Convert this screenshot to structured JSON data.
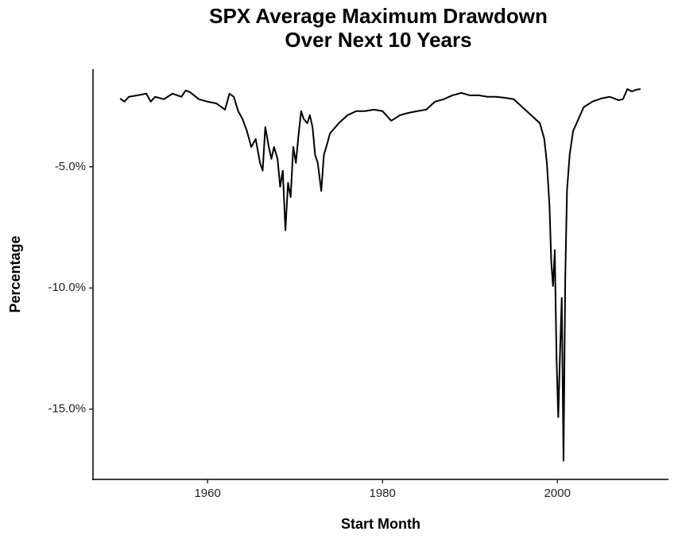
{
  "chart_data": {
    "type": "line",
    "title": [
      "SPX Average Maximum Drawdown",
      "Over Next 10 Years"
    ],
    "x_label": "Start Month",
    "y_label": "Percentage",
    "color": "#000000",
    "x": [
      1950,
      1950.5,
      1951,
      1952,
      1953,
      1953.5,
      1954,
      1955,
      1956,
      1957,
      1957.5,
      1958,
      1959,
      1960,
      1961,
      1962,
      1962.5,
      1963,
      1963.5,
      1964,
      1964.5,
      1965,
      1965.5,
      1966,
      1966.3,
      1966.6,
      1967,
      1967.3,
      1967.6,
      1968,
      1968.3,
      1968.6,
      1968.9,
      1969.2,
      1969.5,
      1969.8,
      1970.1,
      1970.4,
      1970.7,
      1971,
      1971.4,
      1971.7,
      1972,
      1972.3,
      1972.6,
      1973,
      1973.3,
      1973.7,
      1974,
      1975,
      1976,
      1977,
      1978,
      1979,
      1980,
      1981,
      1982,
      1983,
      1984,
      1985,
      1986,
      1987,
      1988,
      1989,
      1990,
      1991,
      1992,
      1993,
      1994,
      1995,
      1996,
      1997,
      1998,
      1998.5,
      1998.8,
      1999.1,
      1999.3,
      1999.5,
      1999.7,
      1999.9,
      2000.1,
      2000.3,
      2000.5,
      2000.7,
      2000.9,
      2001.1,
      2001.4,
      2001.8,
      2002.2,
      2003,
      2004,
      2005,
      2006,
      2007,
      2007.5,
      2008,
      2008.5,
      2009,
      2009.5
    ],
    "values": [
      -2.18,
      -2.31,
      -2.11,
      -2.05,
      -1.98,
      -2.31,
      -2.11,
      -2.21,
      -1.98,
      -2.11,
      -1.85,
      -1.92,
      -2.21,
      -2.31,
      -2.38,
      -2.64,
      -1.98,
      -2.11,
      -2.7,
      -3.03,
      -3.52,
      -4.18,
      -3.85,
      -4.84,
      -5.16,
      -3.36,
      -4.18,
      -4.67,
      -4.18,
      -4.67,
      -5.82,
      -5.16,
      -7.62,
      -5.66,
      -6.25,
      -4.18,
      -4.84,
      -3.69,
      -2.7,
      -3.03,
      -3.2,
      -2.87,
      -3.36,
      -4.51,
      -4.84,
      -6.0,
      -4.51,
      -4.02,
      -3.62,
      -3.2,
      -2.87,
      -2.7,
      -2.7,
      -2.64,
      -2.7,
      -3.1,
      -2.87,
      -2.77,
      -2.7,
      -2.64,
      -2.31,
      -2.21,
      -2.05,
      -1.95,
      -2.05,
      -2.05,
      -2.11,
      -2.11,
      -2.15,
      -2.21,
      -2.54,
      -2.87,
      -3.2,
      -3.85,
      -4.84,
      -6.64,
      -8.93,
      -9.92,
      -8.44,
      -12.87,
      -15.33,
      -12.7,
      -10.41,
      -17.13,
      -9.59,
      -5.98,
      -4.51,
      -3.52,
      -3.2,
      -2.54,
      -2.31,
      -2.18,
      -2.11,
      -2.25,
      -2.21,
      -1.79,
      -1.89,
      -1.82,
      -1.79
    ],
    "xlim": [
      1946.9,
      2012.7
    ],
    "xticks": [
      1960,
      1980,
      2000
    ],
    "ylim": [
      -17.9,
      -0.97
    ],
    "yticks": [
      {
        "value": -5,
        "label": "-5.0%"
      },
      {
        "value": -10,
        "label": "-10.0%"
      },
      {
        "value": -15,
        "label": "-15.0%"
      }
    ],
    "grid": false
  }
}
